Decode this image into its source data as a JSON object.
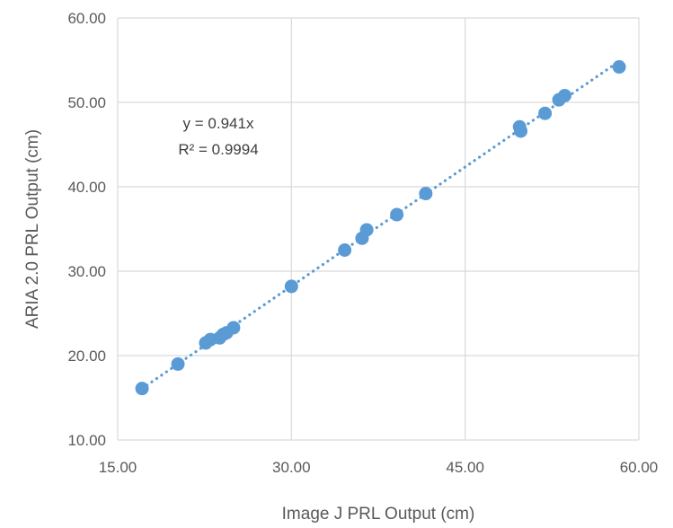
{
  "chart_data": {
    "type": "scatter",
    "title": "",
    "xlabel": "Image J PRL Output (cm)",
    "ylabel": "ARIA 2.0 PRL Output (cm)",
    "xlim": [
      15,
      60
    ],
    "ylim": [
      10,
      60
    ],
    "x_ticks": [
      "15.00",
      "30.00",
      "45.00",
      "60.00"
    ],
    "y_ticks": [
      "10.00",
      "20.00",
      "30.00",
      "40.00",
      "50.00",
      "60.00"
    ],
    "grid": true,
    "legend": "none",
    "series": [
      {
        "color": "#5B9BD5",
        "points": [
          [
            17.1,
            16.1
          ],
          [
            20.2,
            19.0
          ],
          [
            22.6,
            21.5
          ],
          [
            23.0,
            21.9
          ],
          [
            23.8,
            22.1
          ],
          [
            24.1,
            22.5
          ],
          [
            24.4,
            22.7
          ],
          [
            25.0,
            23.3
          ],
          [
            30.0,
            28.2
          ],
          [
            34.6,
            32.5
          ],
          [
            36.1,
            33.9
          ],
          [
            36.5,
            34.9
          ],
          [
            39.1,
            36.7
          ],
          [
            41.6,
            39.2
          ],
          [
            49.7,
            47.1
          ],
          [
            49.8,
            46.6
          ],
          [
            51.9,
            48.7
          ],
          [
            53.1,
            50.3
          ],
          [
            53.6,
            50.8
          ],
          [
            58.3,
            54.2
          ]
        ]
      }
    ],
    "trendline": {
      "slope": 0.941,
      "style": "dotted",
      "color": "#5B9BD5",
      "x_range": [
        17.1,
        58.3
      ]
    },
    "annotations": [
      "y = 0.941x",
      "R² = 0.9994"
    ]
  }
}
